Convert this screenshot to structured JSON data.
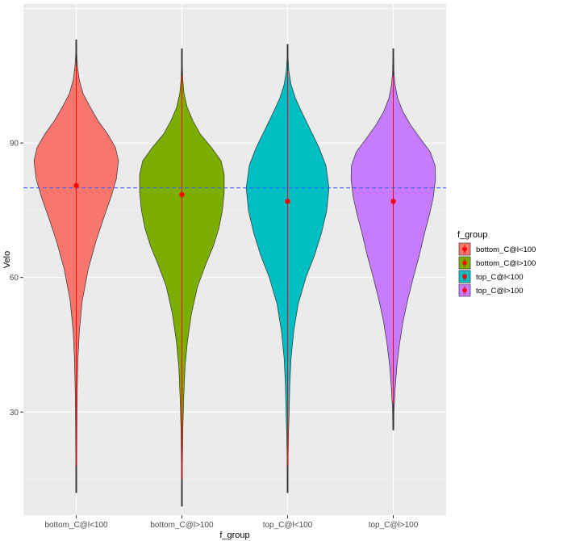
{
  "chart_data": {
    "type": "violin",
    "title": "",
    "xlabel": "f_group",
    "ylabel": "Velo",
    "ylim": [
      7,
      121
    ],
    "yticks": [
      30,
      60,
      90
    ],
    "grid": true,
    "background_color": "#ebebeb",
    "reference_line": {
      "y": 80,
      "color": "#3b5bff",
      "style": "dashed"
    },
    "categories": [
      "bottom_C@l<100",
      "bottom_C@l>100",
      "top_C@l<100",
      "top_C@l>100"
    ],
    "series": [
      {
        "name": "bottom_C@l<100",
        "color": "#f8766d",
        "range": [
          12,
          113
        ],
        "mean": 80.5,
        "density": [
          [
            12,
            0.005
          ],
          [
            20,
            0.01
          ],
          [
            28,
            0.015
          ],
          [
            35,
            0.025
          ],
          [
            42,
            0.04
          ],
          [
            48,
            0.07
          ],
          [
            55,
            0.14
          ],
          [
            62,
            0.28
          ],
          [
            68,
            0.45
          ],
          [
            73,
            0.62
          ],
          [
            78,
            0.8
          ],
          [
            82,
            0.92
          ],
          [
            86,
            0.97
          ],
          [
            89,
            0.9
          ],
          [
            92,
            0.72
          ],
          [
            95,
            0.5
          ],
          [
            98,
            0.32
          ],
          [
            101,
            0.16
          ],
          [
            104,
            0.07
          ],
          [
            107,
            0.03
          ],
          [
            110,
            0.01
          ],
          [
            113,
            0.003
          ]
        ]
      },
      {
        "name": "bottom_C@l>100",
        "color": "#7cae00",
        "range": [
          9,
          111
        ],
        "mean": 78.5,
        "density": [
          [
            9,
            0.003
          ],
          [
            18,
            0.01
          ],
          [
            26,
            0.02
          ],
          [
            33,
            0.04
          ],
          [
            40,
            0.07
          ],
          [
            46,
            0.13
          ],
          [
            52,
            0.22
          ],
          [
            58,
            0.36
          ],
          [
            63,
            0.55
          ],
          [
            67,
            0.72
          ],
          [
            71,
            0.85
          ],
          [
            75,
            0.93
          ],
          [
            79,
            0.97
          ],
          [
            83,
            0.97
          ],
          [
            86,
            0.9
          ],
          [
            89,
            0.68
          ],
          [
            92,
            0.42
          ],
          [
            95,
            0.25
          ],
          [
            98,
            0.12
          ],
          [
            101,
            0.05
          ],
          [
            104,
            0.02
          ],
          [
            107,
            0.008
          ],
          [
            111,
            0.002
          ]
        ]
      },
      {
        "name": "top_C@l<100",
        "color": "#00bfc4",
        "range": [
          12,
          112
        ],
        "mean": 77,
        "density": [
          [
            12,
            0.003
          ],
          [
            20,
            0.008
          ],
          [
            25,
            0.02
          ],
          [
            30,
            0.035
          ],
          [
            36,
            0.05
          ],
          [
            42,
            0.08
          ],
          [
            48,
            0.14
          ],
          [
            54,
            0.24
          ],
          [
            60,
            0.42
          ],
          [
            65,
            0.62
          ],
          [
            70,
            0.78
          ],
          [
            75,
            0.9
          ],
          [
            80,
            0.95
          ],
          [
            85,
            0.88
          ],
          [
            89,
            0.72
          ],
          [
            93,
            0.52
          ],
          [
            97,
            0.32
          ],
          [
            100,
            0.18
          ],
          [
            103,
            0.08
          ],
          [
            106,
            0.03
          ],
          [
            109,
            0.01
          ],
          [
            112,
            0.002
          ]
        ]
      },
      {
        "name": "top_C@l>100",
        "color": "#c77cff",
        "range": [
          26,
          111
        ],
        "mean": 77,
        "density": [
          [
            26,
            0.005
          ],
          [
            30,
            0.015
          ],
          [
            35,
            0.04
          ],
          [
            40,
            0.08
          ],
          [
            45,
            0.14
          ],
          [
            50,
            0.22
          ],
          [
            55,
            0.33
          ],
          [
            60,
            0.46
          ],
          [
            65,
            0.6
          ],
          [
            70,
            0.72
          ],
          [
            74,
            0.83
          ],
          [
            78,
            0.92
          ],
          [
            82,
            0.97
          ],
          [
            85,
            0.96
          ],
          [
            88,
            0.85
          ],
          [
            91,
            0.62
          ],
          [
            94,
            0.4
          ],
          [
            97,
            0.22
          ],
          [
            100,
            0.1
          ],
          [
            103,
            0.04
          ],
          [
            106,
            0.015
          ],
          [
            109,
            0.005
          ],
          [
            111,
            0.002
          ]
        ]
      }
    ],
    "legend": {
      "title": "f_group",
      "position": "right",
      "items": [
        "bottom_C@l<100",
        "bottom_C@l>100",
        "top_C@l<100",
        "top_C@l>100"
      ]
    },
    "summary_marker_color": "#ff0000"
  }
}
